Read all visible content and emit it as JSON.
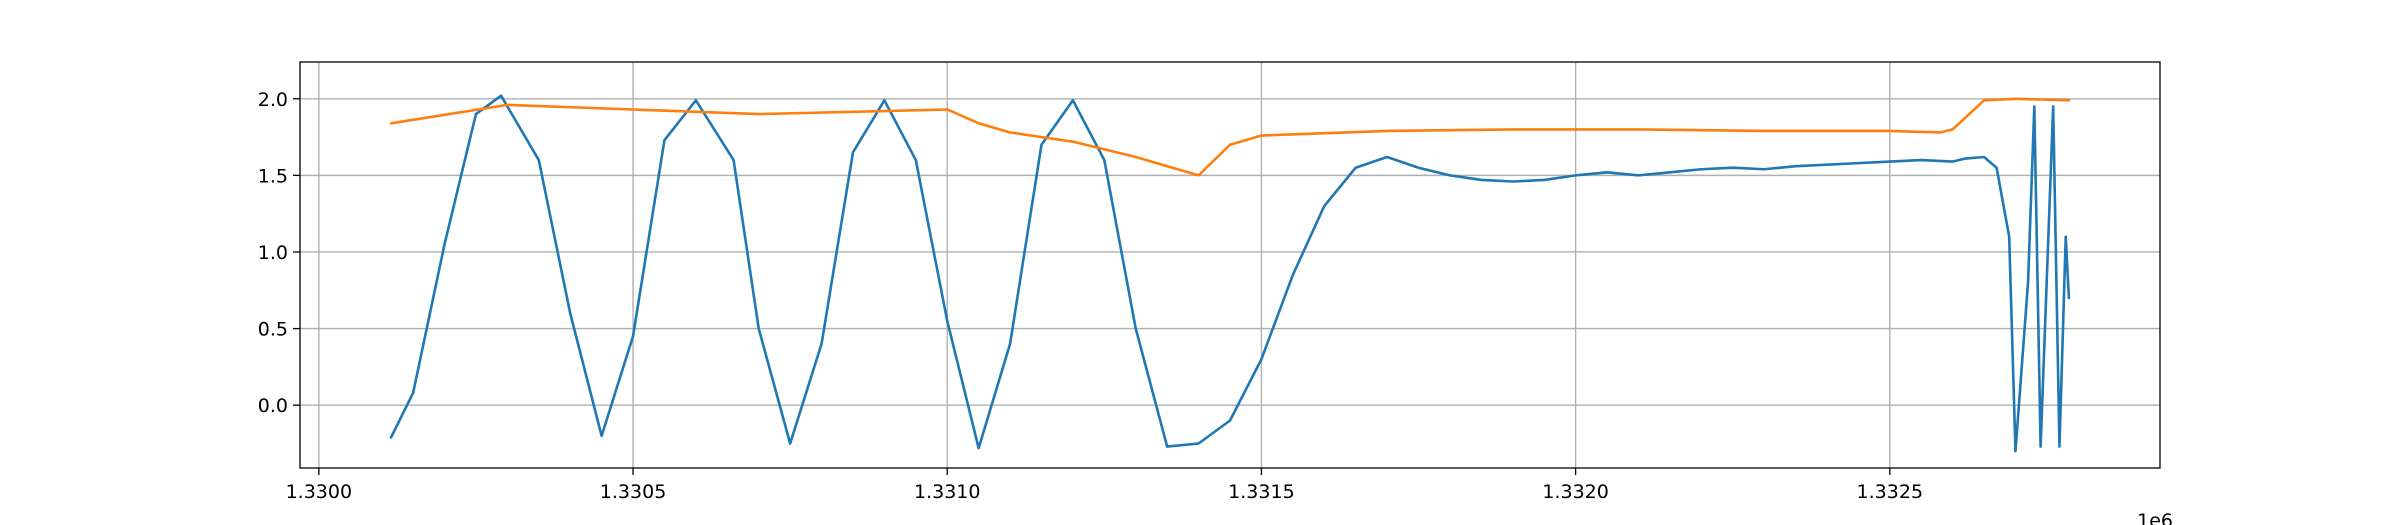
{
  "chart_data": {
    "type": "line",
    "title": "",
    "xlabel": "",
    "ylabel": "",
    "x_offset_label": "1e6",
    "xlim": [
      1.32997,
      1.33293
    ],
    "ylim": [
      -0.41,
      2.24
    ],
    "grid": true,
    "legend": "none",
    "x_ticks": [
      1.33,
      1.3305,
      1.331,
      1.3315,
      1.332,
      1.3325
    ],
    "x_tick_labels": [
      "1.3300",
      "1.3305",
      "1.3310",
      "1.3315",
      "1.3320",
      "1.3325"
    ],
    "y_ticks": [
      0.0,
      0.5,
      1.0,
      1.5,
      2.0
    ],
    "y_tick_labels": [
      "0.0",
      "0.5",
      "1.0",
      "1.5",
      "2.0"
    ],
    "x_range": [
      1.330115,
      1.332785
    ],
    "series": [
      {
        "color": "#1f77b4",
        "x": [
          1.330115,
          1.33015,
          1.3302,
          1.33025,
          1.33029,
          1.33035,
          1.3304,
          1.33045,
          1.3305,
          1.33055,
          1.3306,
          1.33066,
          1.3307,
          1.33075,
          1.3308,
          1.33085,
          1.3309,
          1.33095,
          1.331,
          1.33105,
          1.3311,
          1.33115,
          1.3312,
          1.33125,
          1.3313,
          1.33135,
          1.3314,
          1.33145,
          1.3315,
          1.33155,
          1.3316,
          1.33165,
          1.3317,
          1.33175,
          1.3318,
          1.33185,
          1.3319,
          1.33195,
          1.332,
          1.33205,
          1.3321,
          1.33215,
          1.3322,
          1.33225,
          1.3323,
          1.33235,
          1.3324,
          1.33245,
          1.3325,
          1.33255,
          1.3326,
          1.33262,
          1.33265,
          1.33267,
          1.33269,
          1.3327,
          1.33272,
          1.33273,
          1.33274,
          1.33276,
          1.33277,
          1.33278,
          1.332785
        ],
        "y": [
          -0.21,
          0.08,
          1.05,
          1.9,
          2.02,
          1.6,
          0.6,
          -0.2,
          0.45,
          1.73,
          1.99,
          1.6,
          0.5,
          -0.25,
          0.4,
          1.65,
          1.99,
          1.6,
          0.55,
          -0.28,
          0.4,
          1.7,
          1.99,
          1.6,
          0.5,
          -0.27,
          -0.25,
          -0.1,
          0.3,
          0.85,
          1.3,
          1.55,
          1.62,
          1.55,
          1.5,
          1.47,
          1.46,
          1.47,
          1.5,
          1.52,
          1.5,
          1.52,
          1.54,
          1.55,
          1.54,
          1.56,
          1.57,
          1.58,
          1.59,
          1.6,
          1.59,
          1.61,
          1.62,
          1.55,
          1.1,
          -0.3,
          0.8,
          1.95,
          -0.27,
          1.95,
          -0.27,
          1.1,
          0.7
        ]
      },
      {
        "color": "#ff7f0e",
        "x": [
          1.330115,
          1.3303,
          1.3305,
          1.3307,
          1.3309,
          1.331,
          1.33105,
          1.3311,
          1.3312,
          1.3313,
          1.3314,
          1.33142,
          1.33145,
          1.3315,
          1.3317,
          1.3319,
          1.3321,
          1.3323,
          1.3325,
          1.33258,
          1.3326,
          1.33265,
          1.3327,
          1.332785
        ],
        "y": [
          1.84,
          1.96,
          1.93,
          1.9,
          1.92,
          1.93,
          1.84,
          1.78,
          1.72,
          1.62,
          1.5,
          1.58,
          1.7,
          1.76,
          1.79,
          1.8,
          1.8,
          1.79,
          1.79,
          1.78,
          1.8,
          1.99,
          2.0,
          1.99
        ]
      }
    ]
  }
}
